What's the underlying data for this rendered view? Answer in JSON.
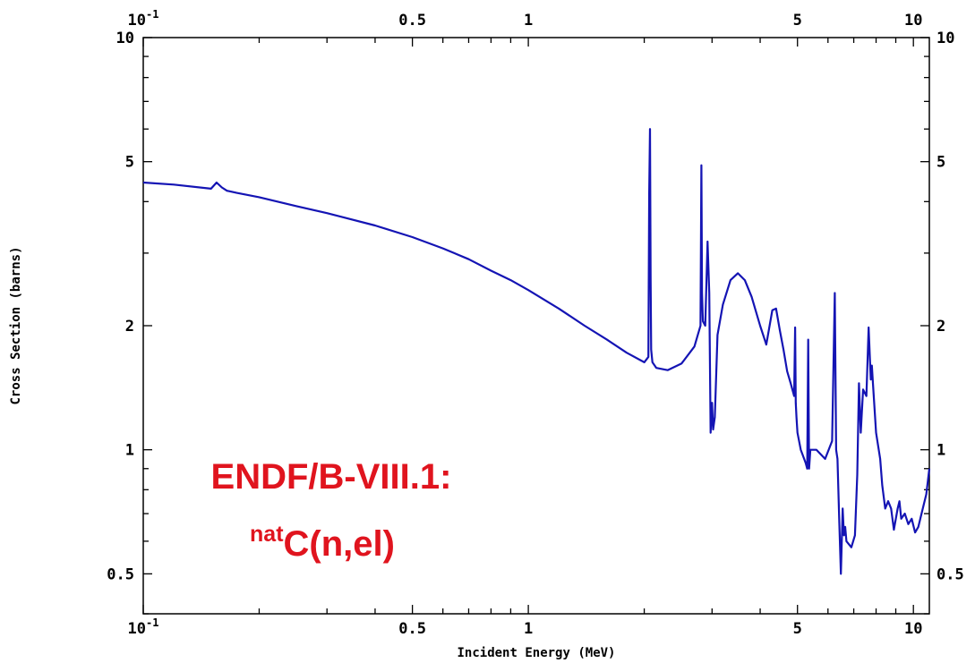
{
  "chart_data": {
    "type": "line",
    "title": "",
    "xlabel": "Incident Energy (MeV)",
    "ylabel": "Cross Section (barns)",
    "xscale": "log",
    "yscale": "log",
    "xlim": [
      0.1,
      11
    ],
    "ylim": [
      0.4,
      10
    ],
    "grid": false,
    "legend": "none",
    "x_ticks": [
      {
        "value": 0.1,
        "label": "10",
        "sup": "-1"
      },
      {
        "value": 0.5,
        "label": "0.5",
        "sup": ""
      },
      {
        "value": 1,
        "label": "1",
        "sup": ""
      },
      {
        "value": 5,
        "label": "5",
        "sup": ""
      },
      {
        "value": 10,
        "label": "10",
        "sup": ""
      }
    ],
    "y_ticks": [
      {
        "value": 10,
        "label": "10"
      },
      {
        "value": 5,
        "label": "5"
      },
      {
        "value": 2,
        "label": "2"
      },
      {
        "value": 1,
        "label": "1"
      },
      {
        "value": 0.5,
        "label": "0.5"
      }
    ],
    "annotation": {
      "line1": "ENDF/B-VIII.1:",
      "line2_sup": "nat",
      "line2": "C(n,el)",
      "color": "#e0141e"
    },
    "series": [
      {
        "color": "#1414b4",
        "x": [
          0.1,
          0.12,
          0.15,
          0.155,
          0.16,
          0.165,
          0.175,
          0.2,
          0.25,
          0.3,
          0.4,
          0.5,
          0.6,
          0.7,
          0.8,
          0.9,
          1.0,
          1.2,
          1.4,
          1.6,
          1.8,
          2.0,
          2.05,
          2.06,
          2.07,
          2.078,
          2.085,
          2.1,
          2.15,
          2.3,
          2.5,
          2.7,
          2.8,
          2.815,
          2.825,
          2.84,
          2.88,
          2.92,
          2.95,
          2.975,
          3.0,
          3.02,
          3.05,
          3.1,
          3.2,
          3.35,
          3.5,
          3.65,
          3.8,
          4.0,
          4.15,
          4.3,
          4.4,
          4.5,
          4.6,
          4.7,
          4.8,
          4.9,
          4.93,
          4.95,
          4.97,
          5.0,
          5.1,
          5.25,
          5.3,
          5.33,
          5.36,
          5.4,
          5.6,
          5.9,
          6.15,
          6.25,
          6.3,
          6.35,
          6.42,
          6.48,
          6.55,
          6.6,
          6.65,
          6.7,
          6.9,
          7.05,
          7.15,
          7.22,
          7.3,
          7.4,
          7.55,
          7.65,
          7.75,
          7.8,
          7.85,
          8.0,
          8.2,
          8.3,
          8.45,
          8.6,
          8.75,
          8.9,
          9.1,
          9.2,
          9.3,
          9.5,
          9.7,
          9.9,
          10.1,
          10.3,
          10.5,
          10.8,
          11.0
        ],
        "y": [
          4.45,
          4.4,
          4.3,
          4.45,
          4.33,
          4.25,
          4.2,
          4.1,
          3.9,
          3.75,
          3.5,
          3.28,
          3.08,
          2.9,
          2.72,
          2.58,
          2.44,
          2.2,
          2.0,
          1.85,
          1.72,
          1.63,
          1.68,
          4.2,
          6.0,
          2.6,
          1.75,
          1.63,
          1.58,
          1.56,
          1.62,
          1.78,
          2.0,
          4.9,
          2.4,
          2.05,
          2.0,
          3.2,
          2.4,
          1.1,
          1.3,
          1.12,
          1.2,
          1.9,
          2.25,
          2.58,
          2.68,
          2.58,
          2.35,
          2.0,
          1.8,
          2.18,
          2.2,
          1.95,
          1.75,
          1.55,
          1.45,
          1.35,
          1.98,
          1.3,
          1.2,
          1.1,
          1.0,
          0.93,
          0.9,
          1.85,
          0.9,
          1.0,
          1.0,
          0.95,
          1.05,
          2.4,
          1.0,
          0.95,
          0.67,
          0.5,
          0.72,
          0.62,
          0.65,
          0.6,
          0.58,
          0.62,
          0.87,
          1.45,
          1.1,
          1.4,
          1.35,
          1.98,
          1.48,
          1.6,
          1.45,
          1.1,
          0.95,
          0.82,
          0.72,
          0.75,
          0.72,
          0.64,
          0.72,
          0.75,
          0.68,
          0.7,
          0.66,
          0.68,
          0.63,
          0.65,
          0.7,
          0.78,
          0.9
        ]
      }
    ]
  }
}
